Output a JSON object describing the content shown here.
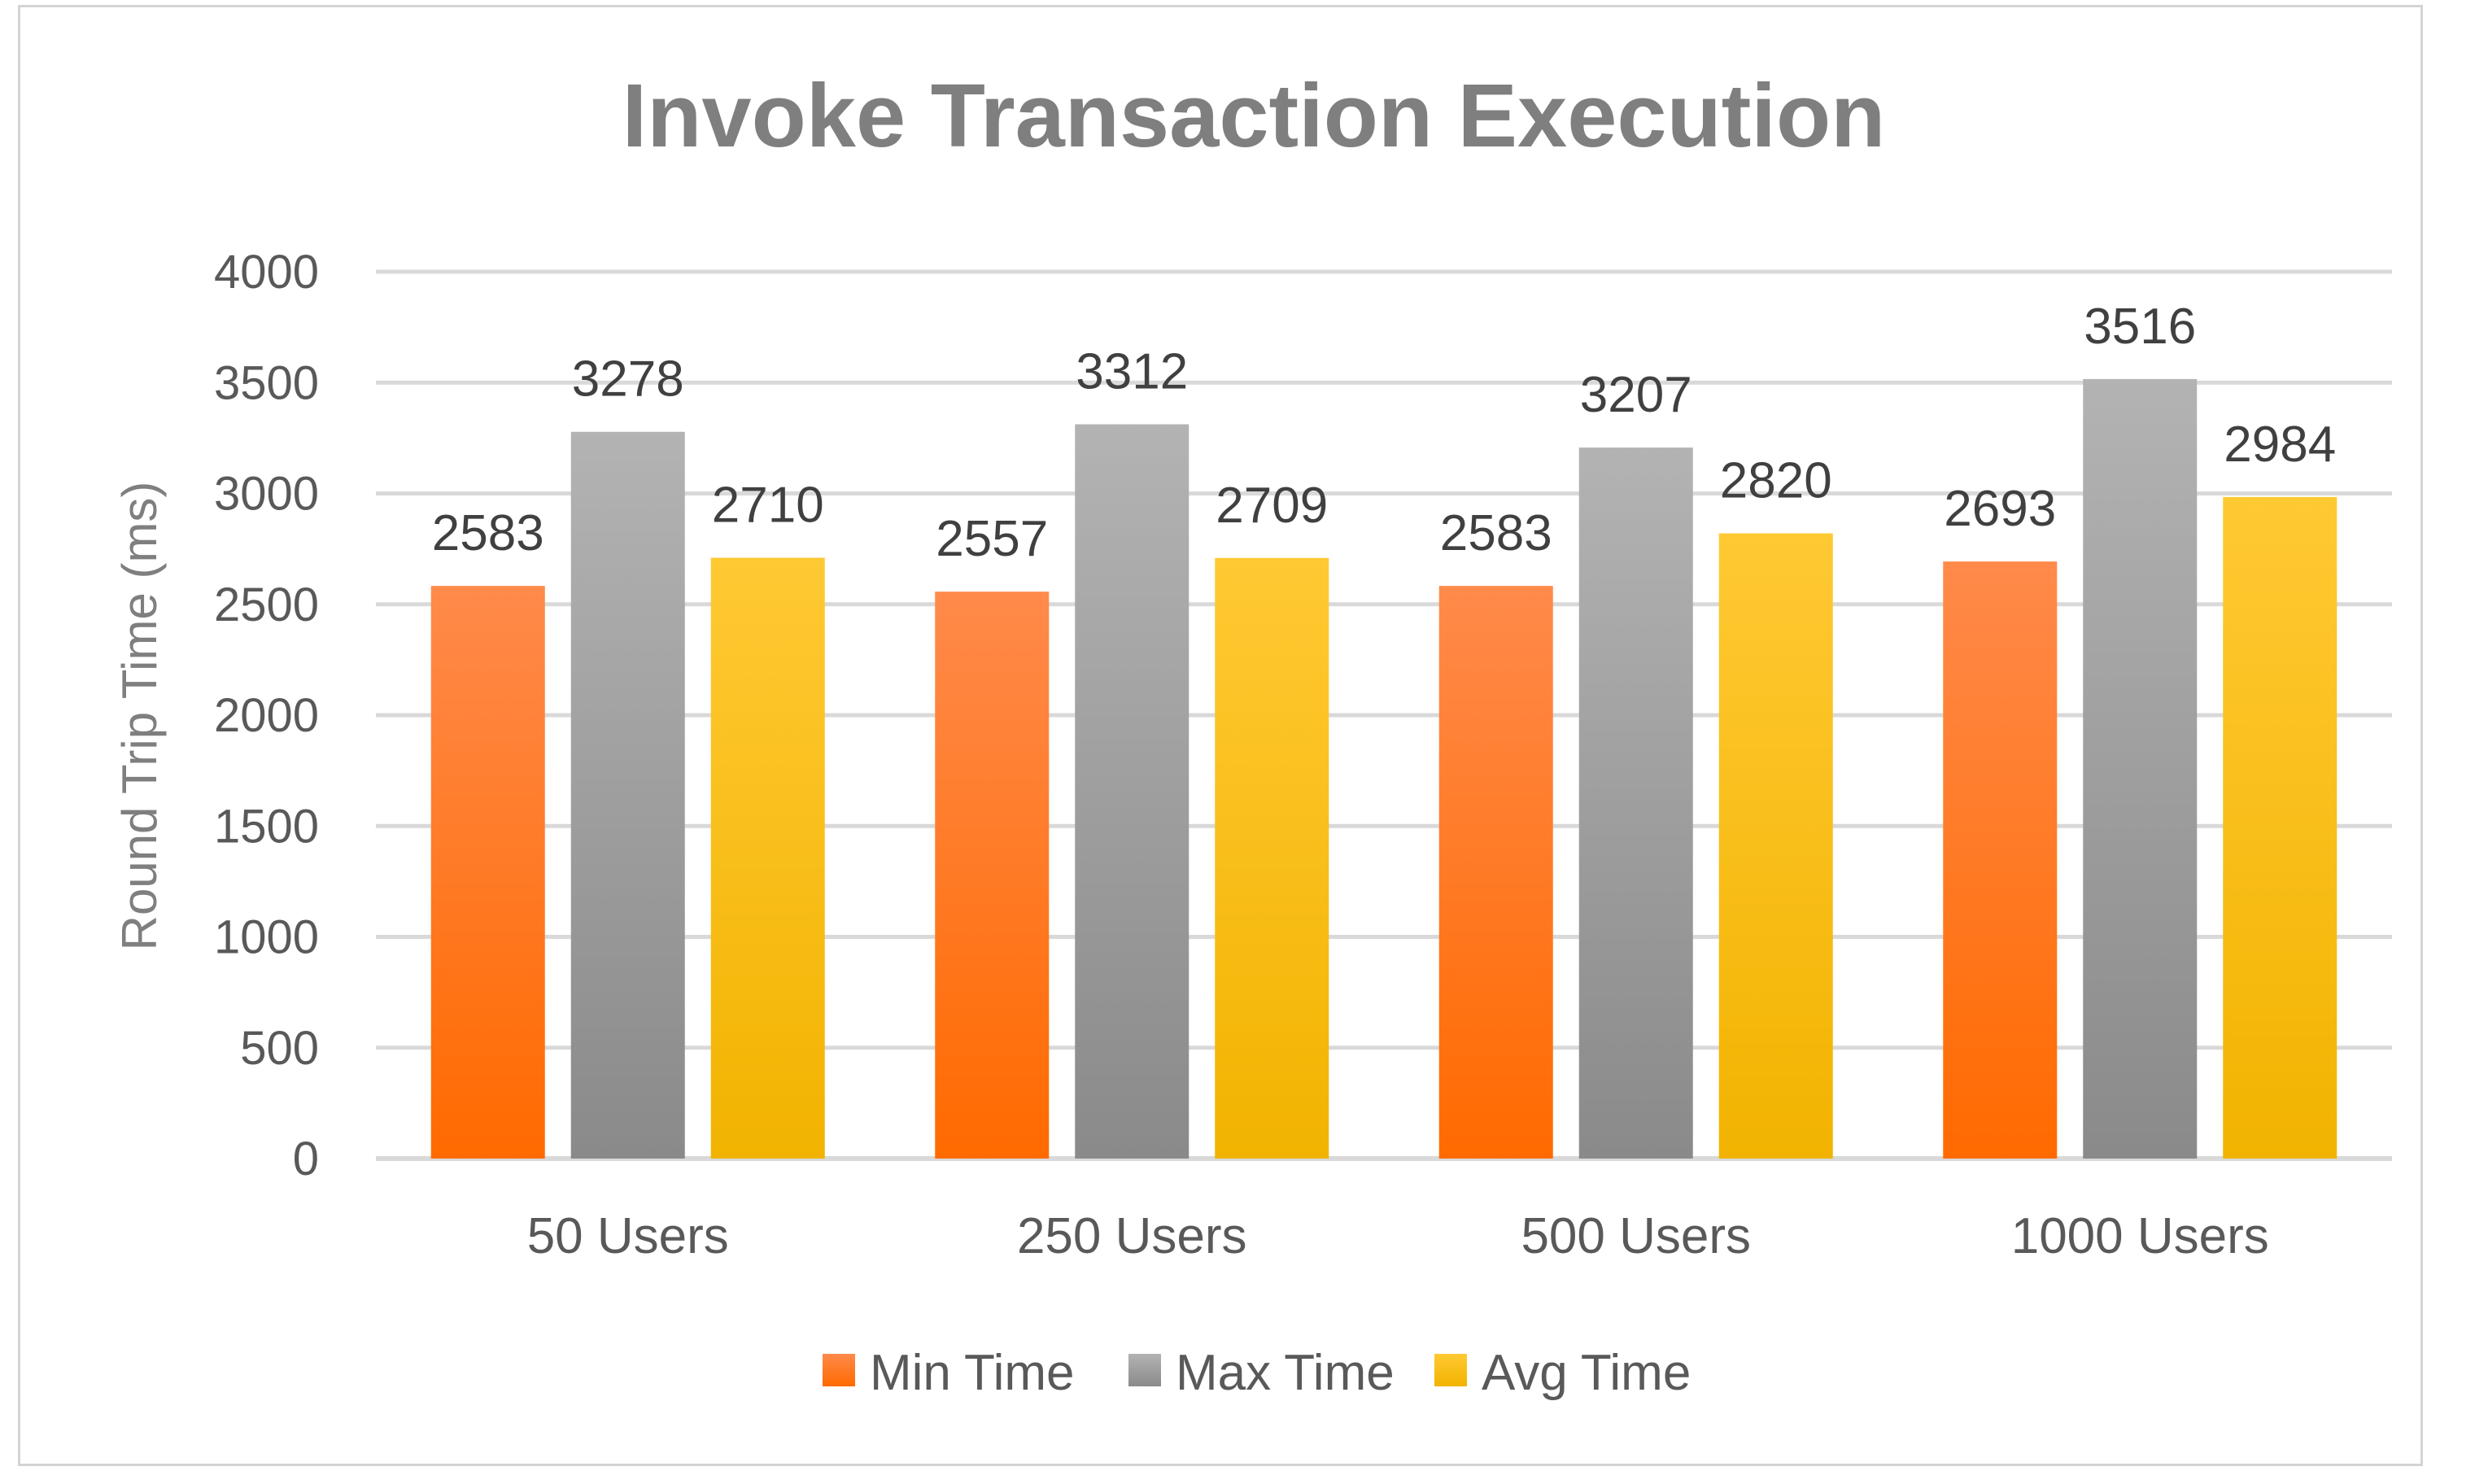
{
  "chart_data": {
    "type": "bar",
    "title": "Invoke Transaction Execution",
    "xlabel": "",
    "ylabel": "Round Trip Time (ms)",
    "ylim": [
      0,
      4000
    ],
    "yticks": [
      0,
      500,
      1000,
      1500,
      2000,
      2500,
      3000,
      3500,
      4000
    ],
    "categories": [
      "50 Users",
      "250 Users",
      "500 Users",
      "1000 Users"
    ],
    "series": [
      {
        "name": "Min Time",
        "values": [
          2583,
          2557,
          2583,
          2693
        ],
        "color_top": "#ff8a4a",
        "color_bottom": "#ff6a00"
      },
      {
        "name": "Max Time",
        "values": [
          3278,
          3312,
          3207,
          3516
        ],
        "color_top": "#b3b3b3",
        "color_bottom": "#8a8a8a"
      },
      {
        "name": "Avg Time",
        "values": [
          2710,
          2709,
          2820,
          2984
        ],
        "color_top": "#ffc933",
        "color_bottom": "#f2b300"
      }
    ],
    "grid": true,
    "legend_position": "bottom",
    "data_labels": true
  }
}
